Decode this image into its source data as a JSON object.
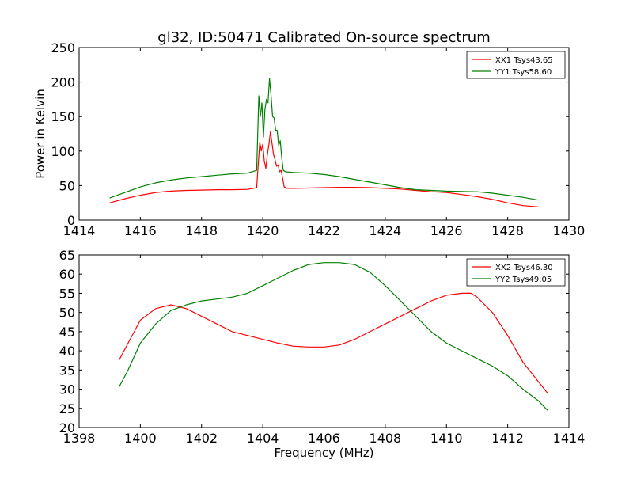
{
  "chart_data": [
    {
      "type": "line",
      "title": "gl32, ID:50471 Calibrated On-source spectrum",
      "xlabel": "",
      "ylabel": "Power in Kelvin",
      "xlim": [
        1414,
        1430
      ],
      "ylim": [
        0,
        250
      ],
      "xticks": [
        "1414",
        "1416",
        "1418",
        "1420",
        "1422",
        "1424",
        "1426",
        "1428",
        "1430"
      ],
      "yticks": [
        "0",
        "50",
        "100",
        "150",
        "200",
        "250"
      ],
      "grid": false,
      "legend_position": "top-right",
      "series": [
        {
          "name": "XX1 Tsys43.65",
          "color": "#ff0000",
          "x": [
            1415.0,
            1415.5,
            1416.0,
            1416.5,
            1417.0,
            1417.5,
            1418.0,
            1418.5,
            1419.0,
            1419.5,
            1419.8,
            1419.9,
            1419.95,
            1420.0,
            1420.05,
            1420.1,
            1420.15,
            1420.2,
            1420.25,
            1420.3,
            1420.35,
            1420.4,
            1420.45,
            1420.5,
            1420.55,
            1420.6,
            1420.65,
            1420.7,
            1420.8,
            1421.0,
            1421.5,
            1422.0,
            1422.5,
            1423.0,
            1423.5,
            1424.0,
            1424.5,
            1425.0,
            1425.5,
            1426.0,
            1426.5,
            1427.0,
            1427.5,
            1428.0,
            1428.5,
            1429.0
          ],
          "y": [
            25,
            31,
            36,
            40,
            42,
            43,
            43.5,
            44,
            44,
            44.5,
            47,
            113,
            100,
            110,
            85,
            75,
            95,
            110,
            128,
            112,
            95,
            88,
            78,
            80,
            70,
            72,
            60,
            48,
            46,
            46,
            46.5,
            47,
            47.5,
            47.5,
            47,
            46,
            45,
            43,
            41,
            40,
            37,
            34,
            30,
            25,
            21,
            19
          ]
        },
        {
          "name": "YY1 Tsys58.60",
          "color": "#008000",
          "x": [
            1415.0,
            1415.5,
            1416.0,
            1416.5,
            1417.0,
            1417.5,
            1418.0,
            1418.5,
            1419.0,
            1419.5,
            1419.8,
            1419.87,
            1419.92,
            1419.97,
            1420.02,
            1420.07,
            1420.12,
            1420.17,
            1420.22,
            1420.27,
            1420.32,
            1420.37,
            1420.42,
            1420.47,
            1420.52,
            1420.57,
            1420.62,
            1420.67,
            1420.75,
            1421.0,
            1421.5,
            1422.0,
            1422.5,
            1423.0,
            1423.5,
            1424.0,
            1424.5,
            1425.0,
            1425.5,
            1426.0,
            1426.5,
            1427.0,
            1427.5,
            1428.0,
            1428.5,
            1429.0
          ],
          "y": [
            32,
            40,
            48,
            54,
            58,
            61,
            63,
            65,
            67,
            68,
            72,
            180,
            150,
            170,
            120,
            160,
            175,
            170,
            205,
            180,
            150,
            148,
            130,
            130,
            108,
            115,
            90,
            72,
            70,
            69,
            68,
            66,
            63,
            59,
            55,
            51,
            47,
            44,
            43,
            42,
            41.5,
            41,
            39,
            36,
            33,
            29
          ]
        }
      ]
    },
    {
      "type": "line",
      "title": "",
      "xlabel": "Frequency (MHz)",
      "ylabel": "",
      "xlim": [
        1398,
        1414
      ],
      "ylim": [
        20,
        65
      ],
      "xticks": [
        "1398",
        "1400",
        "1402",
        "1404",
        "1406",
        "1408",
        "1410",
        "1412",
        "1414"
      ],
      "yticks": [
        "20",
        "25",
        "30",
        "35",
        "40",
        "45",
        "50",
        "55",
        "60",
        "65"
      ],
      "grid": false,
      "legend_position": "top-right",
      "series": [
        {
          "name": "XX2 Tsys46.30",
          "color": "#ff0000",
          "x": [
            1399.3,
            1399.6,
            1400.0,
            1400.5,
            1401.0,
            1401.5,
            1402.0,
            1402.5,
            1403.0,
            1403.5,
            1404.0,
            1404.5,
            1405.0,
            1405.5,
            1406.0,
            1406.5,
            1407.0,
            1407.5,
            1408.0,
            1408.5,
            1409.0,
            1409.5,
            1410.0,
            1410.5,
            1410.8,
            1411.0,
            1411.5,
            1412.0,
            1412.5,
            1413.0,
            1413.3
          ],
          "y": [
            37.5,
            42,
            48,
            51,
            52,
            51,
            49,
            47,
            45,
            44,
            43,
            42,
            41.2,
            41,
            41,
            41.5,
            43,
            45,
            47,
            49,
            51,
            53,
            54.5,
            55,
            55,
            54,
            50,
            44,
            37,
            32,
            29
          ]
        },
        {
          "name": "YY2 Tsys49.05",
          "color": "#008000",
          "x": [
            1399.3,
            1399.6,
            1400.0,
            1400.5,
            1401.0,
            1401.5,
            1402.0,
            1402.5,
            1403.0,
            1403.5,
            1404.0,
            1404.5,
            1405.0,
            1405.5,
            1406.0,
            1406.5,
            1407.0,
            1407.5,
            1408.0,
            1408.5,
            1409.0,
            1409.5,
            1410.0,
            1410.5,
            1411.0,
            1411.5,
            1412.0,
            1412.5,
            1413.0,
            1413.3
          ],
          "y": [
            30.5,
            35,
            42,
            47,
            50.5,
            52,
            53,
            53.5,
            54,
            55,
            57,
            59,
            61,
            62.5,
            63,
            63,
            62.5,
            60.5,
            57,
            53,
            49,
            45,
            42,
            40,
            38,
            36,
            33.5,
            30,
            27,
            24.5
          ]
        }
      ]
    }
  ]
}
